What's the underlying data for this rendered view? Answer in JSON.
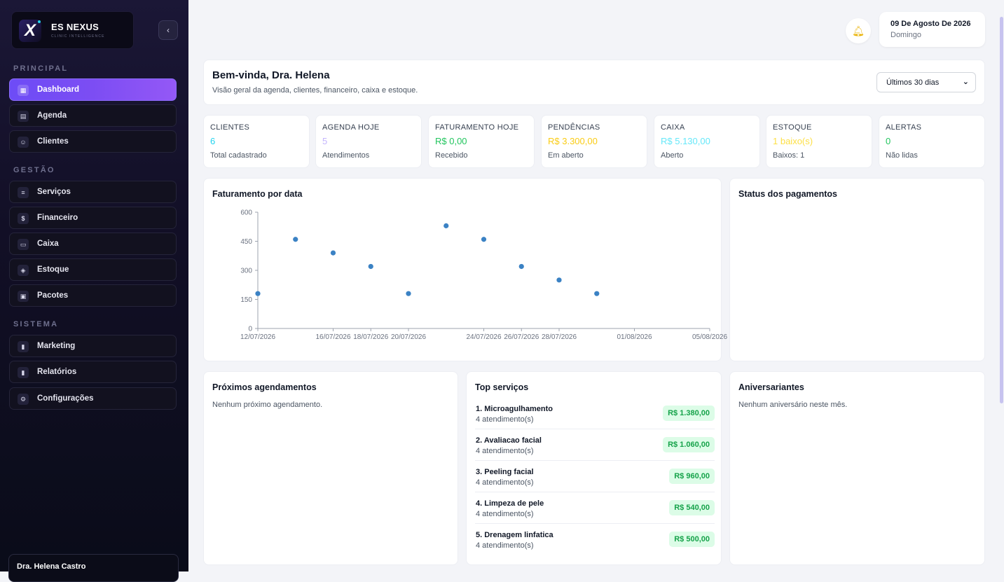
{
  "brand": {
    "name": "ES NEXUS",
    "subtitle": "CLINIC INTELLIGENCE",
    "logo_letter": "X"
  },
  "sidebar": {
    "collapse_icon": "chevron-left-icon",
    "sections": [
      {
        "label": "PRINCIPAL",
        "items": [
          {
            "label": "Dashboard",
            "icon": "grid-icon",
            "active": true
          },
          {
            "label": "Agenda",
            "icon": "calendar-icon"
          },
          {
            "label": "Clientes",
            "icon": "users-icon"
          }
        ]
      },
      {
        "label": "GESTÃO",
        "items": [
          {
            "label": "Serviços",
            "icon": "sliders-icon"
          },
          {
            "label": "Financeiro",
            "icon": "dollar-icon"
          },
          {
            "label": "Caixa",
            "icon": "cash-register-icon"
          },
          {
            "label": "Estoque",
            "icon": "box-icon"
          },
          {
            "label": "Pacotes",
            "icon": "package-icon"
          }
        ]
      },
      {
        "label": "SISTEMA",
        "items": [
          {
            "label": "Marketing",
            "icon": "bar-chart-icon"
          },
          {
            "label": "Relatórios",
            "icon": "report-icon"
          },
          {
            "label": "Configurações",
            "icon": "gear-icon"
          }
        ]
      }
    ],
    "user": {
      "name": "Dra. Helena Castro"
    }
  },
  "topbar": {
    "date": "09 De Agosto De 2026",
    "weekday": "Domingo",
    "bell_icon": "bell-icon"
  },
  "welcome": {
    "title": "Bem-vinda, Dra. Helena",
    "subtitle": "Visão geral da agenda, clientes, financeiro, caixa e estoque.",
    "period": "Últimos 30 dias"
  },
  "kpis": [
    {
      "label": "CLIENTES",
      "value": "6",
      "sub": "Total cadastrado",
      "color": "#22d3ee"
    },
    {
      "label": "AGENDA HOJE",
      "value": "5",
      "sub": "Atendimentos",
      "color": "#c4b5fd"
    },
    {
      "label": "FATURAMENTO HOJE",
      "value": "R$ 0,00",
      "sub": "Recebido",
      "color": "#22c55e"
    },
    {
      "label": "PENDÊNCIAS",
      "value": "R$ 3.300,00",
      "sub": "Em aberto",
      "color": "#facc15"
    },
    {
      "label": "CAIXA",
      "value": "R$ 5.130,00",
      "sub": "Aberto",
      "color": "#67e8f9"
    },
    {
      "label": "ESTOQUE",
      "value": "1 baixo(s)",
      "sub": "Baixos: 1",
      "color": "#fde047"
    },
    {
      "label": "ALERTAS",
      "value": "0",
      "sub": "Não lidas",
      "color": "#22c55e"
    }
  ],
  "revenue_card": {
    "title": "Faturamento por data"
  },
  "chart_data": {
    "type": "scatter",
    "title": "Faturamento por data",
    "x": [
      "12/07/2026",
      "14/07/2026",
      "16/07/2026",
      "18/07/2026",
      "20/07/2026",
      "22/07/2026",
      "24/07/2026",
      "26/07/2026",
      "28/07/2026",
      "30/07/2026",
      "01/08/2026",
      "03/08/2026",
      "05/08/2026"
    ],
    "x_tick_labels": [
      "12/07/2026",
      "16/07/2026",
      "18/07/2026",
      "20/07/2026",
      "24/07/2026",
      "26/07/2026",
      "28/07/2026",
      "01/08/2026",
      "05/08/2026"
    ],
    "points": [
      {
        "x": "12/07/2026",
        "y": 180
      },
      {
        "x": "14/07/2026",
        "y": 460
      },
      {
        "x": "16/07/2026",
        "y": 390
      },
      {
        "x": "18/07/2026",
        "y": 320
      },
      {
        "x": "20/07/2026",
        "y": 180
      },
      {
        "x": "22/07/2026",
        "y": 530
      },
      {
        "x": "24/07/2026",
        "y": 460
      },
      {
        "x": "26/07/2026",
        "y": 320
      },
      {
        "x": "28/07/2026",
        "y": 250
      },
      {
        "x": "30/07/2026",
        "y": 180
      }
    ],
    "y_ticks": [
      0,
      150,
      300,
      450,
      600
    ],
    "ylim": [
      0,
      600
    ],
    "color": "#3b82c4",
    "grid": false
  },
  "payments_card": {
    "title": "Status dos pagamentos"
  },
  "appointments_card": {
    "title": "Próximos agendamentos",
    "empty": "Nenhum próximo agendamento."
  },
  "top_services": {
    "title": "Top serviços",
    "items": [
      {
        "name": "1. Microagulhamento",
        "count": "4 atendimento(s)",
        "price": "R$ 1.380,00"
      },
      {
        "name": "2. Avaliacao facial",
        "count": "4 atendimento(s)",
        "price": "R$ 1.060,00"
      },
      {
        "name": "3. Peeling facial",
        "count": "4 atendimento(s)",
        "price": "R$ 960,00"
      },
      {
        "name": "4. Limpeza de pele",
        "count": "4 atendimento(s)",
        "price": "R$ 540,00"
      },
      {
        "name": "5. Drenagem linfatica",
        "count": "4 atendimento(s)",
        "price": "R$ 500,00"
      }
    ]
  },
  "birthdays_card": {
    "title": "Aniversariantes",
    "empty": "Nenhum aniversário neste mês."
  }
}
